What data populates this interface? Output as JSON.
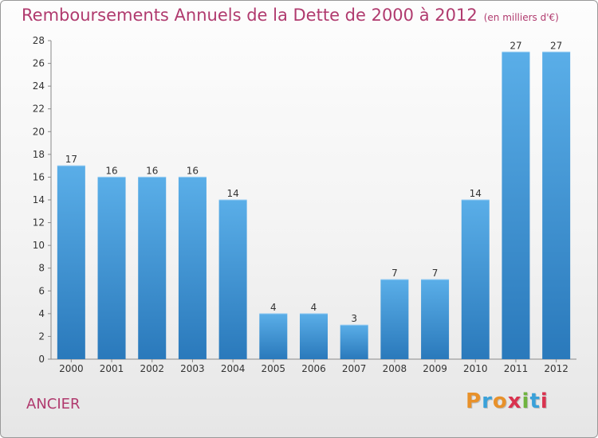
{
  "title": "Remboursements Annuels de la Dette de 2000 à 2012",
  "unit": "(en milliers d'€)",
  "commune": "ANCIER",
  "logo": {
    "letters": [
      "P",
      "r",
      "o",
      "x",
      "i",
      "t",
      "i"
    ],
    "colors": [
      "#e8912a",
      "#3aa1d9",
      "#e8912a",
      "#d9334f",
      "#6fb43f",
      "#3aa1d9",
      "#d9334f"
    ]
  },
  "chart_data": {
    "type": "bar",
    "categories": [
      "2000",
      "2001",
      "2002",
      "2003",
      "2004",
      "2005",
      "2006",
      "2007",
      "2008",
      "2009",
      "2010",
      "2011",
      "2012"
    ],
    "values": [
      17,
      16,
      16,
      16,
      14,
      4,
      4,
      3,
      7,
      7,
      14,
      27,
      27
    ],
    "ylim": [
      0,
      28
    ],
    "yticks": [
      0,
      2,
      4,
      6,
      8,
      10,
      12,
      14,
      16,
      18,
      20,
      22,
      24,
      26,
      28
    ],
    "bar_color": "#3f93d6",
    "grid": false
  }
}
